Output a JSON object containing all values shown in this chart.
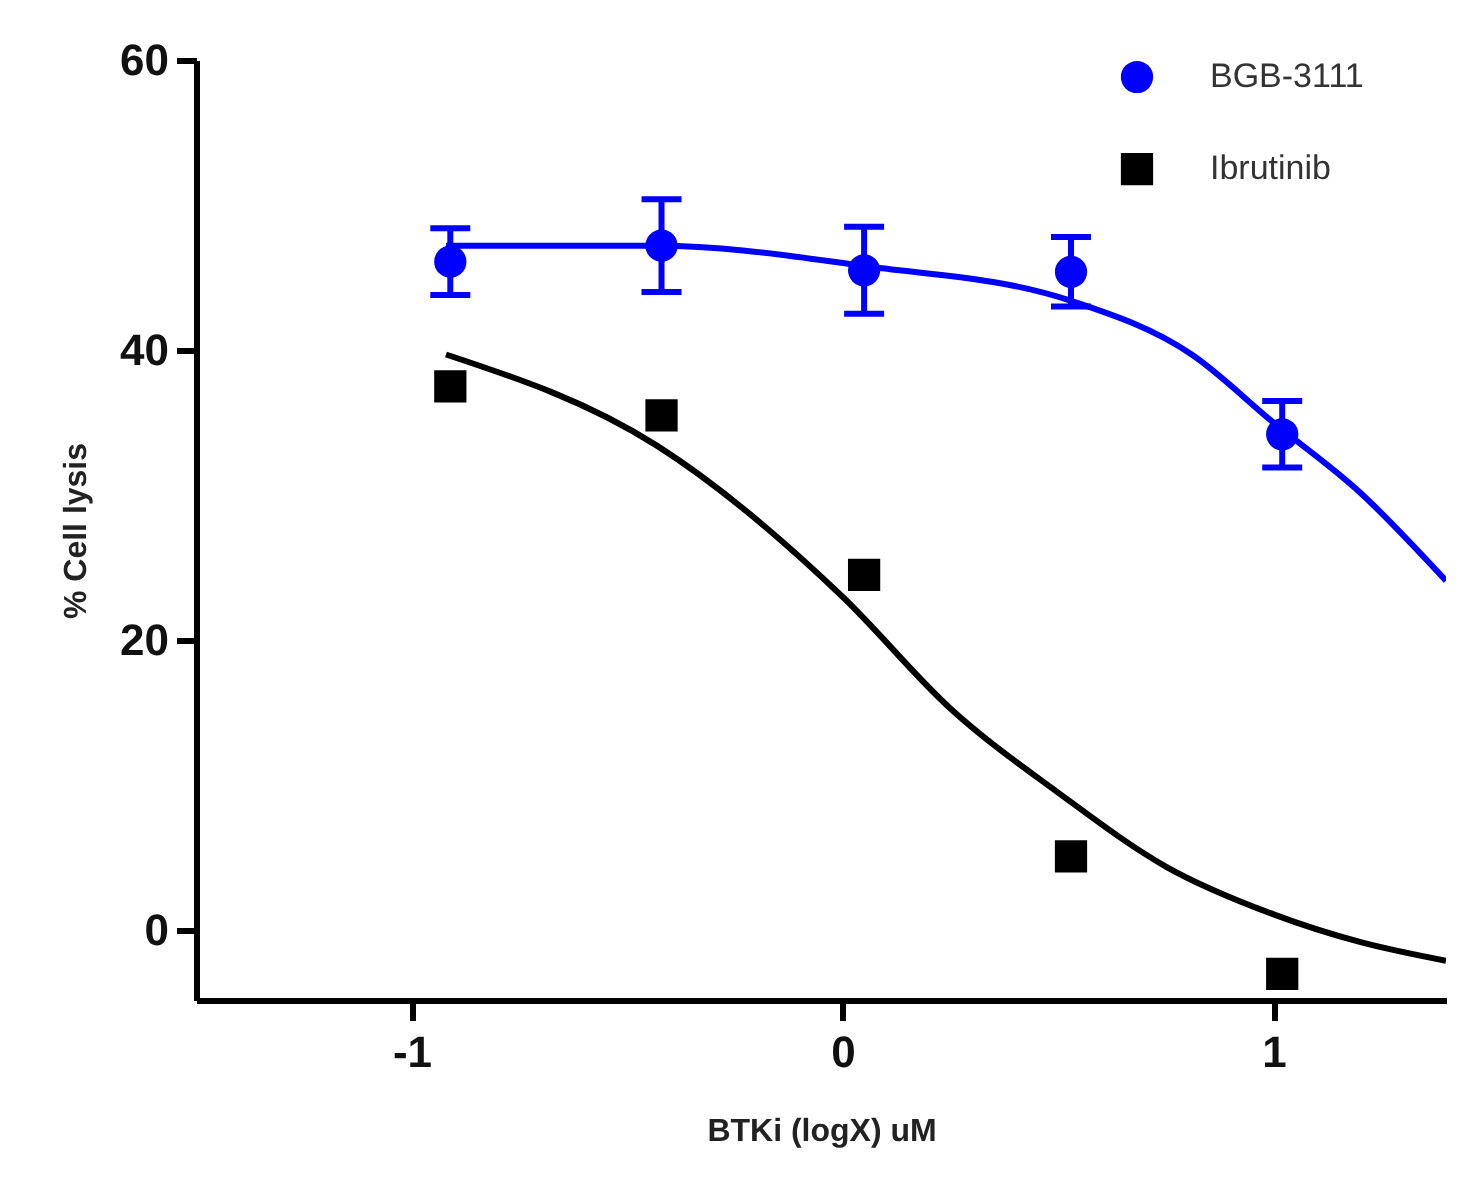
{
  "chart_data": {
    "type": "scatter",
    "xlabel": "BTKi (logX) uM",
    "ylabel": "% Cell lysis",
    "xlim": [
      -1.5,
      1.4
    ],
    "xticks": [
      -1,
      0,
      1
    ],
    "ylim": [
      -4.8,
      60
    ],
    "yticks": [
      0,
      20,
      40,
      60
    ],
    "legend": "top right",
    "grid": false,
    "series": [
      {
        "name": "BGB-3111",
        "color": "#0000ff",
        "marker": "circle",
        "x": [
          -0.91,
          -0.42,
          0.05,
          0.53,
          1.02
        ],
        "values": [
          46.1,
          47.2,
          45.5,
          45.4,
          34.2
        ],
        "errors": [
          2.3,
          3.2,
          3.0,
          2.4,
          2.3
        ]
      },
      {
        "name": "Ibrutinib",
        "color": "#000000",
        "marker": "square",
        "x": [
          -0.91,
          -0.42,
          0.05,
          0.53,
          1.02
        ],
        "values": [
          37.5,
          35.5,
          24.5,
          5.1,
          -3.0
        ]
      },
      {
        "type": "line",
        "color": "#0000ff",
        "x": [
          -0.92,
          -0.43,
          0.05,
          0.53,
          0.81,
          1.0,
          1.2,
          1.4
        ],
        "values": [
          47.2,
          47.2,
          45.8,
          43.4,
          39.7,
          35.0,
          30.2,
          24.1
        ]
      },
      {
        "type": "line",
        "color": "#000000",
        "x": [
          -0.92,
          -0.43,
          0.0,
          0.25,
          0.5,
          0.75,
          1.0,
          1.2,
          1.4
        ],
        "values": [
          39.7,
          33.4,
          23.0,
          15.3,
          9.5,
          4.4,
          1.1,
          -0.8,
          -2.1
        ]
      }
    ]
  }
}
